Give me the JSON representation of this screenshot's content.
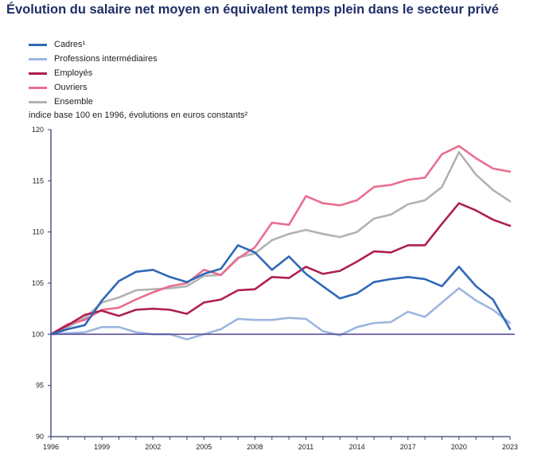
{
  "title": "Évolution du salaire net moyen en équivalent temps plein dans le secteur privé",
  "chart_data": {
    "type": "line",
    "title": "Évolution du salaire net moyen en équivalent temps plein dans le secteur privé",
    "ylabel": "indice base 100 en 1996, évolutions en euros constants²",
    "xlabel": "",
    "x": [
      1996,
      1997,
      1998,
      1999,
      2000,
      2001,
      2002,
      2003,
      2004,
      2005,
      2006,
      2007,
      2008,
      2009,
      2010,
      2011,
      2012,
      2013,
      2014,
      2015,
      2016,
      2017,
      2018,
      2019,
      2020,
      2021,
      2022,
      2023
    ],
    "xticks": [
      "1996",
      "1999",
      "2002",
      "2005",
      "2008",
      "2011",
      "2014",
      "2017",
      "2020",
      "2023"
    ],
    "yticks": [
      "90",
      "95",
      "100",
      "105",
      "110",
      "115",
      "120"
    ],
    "ylim": [
      90,
      120
    ],
    "xlim": [
      1996,
      2023
    ],
    "baseline": 100,
    "legend_position": "top-left",
    "grid": false,
    "series": [
      {
        "name": "Cadres¹",
        "color": "#2f68b8",
        "values": [
          100,
          100.5,
          100.9,
          103.3,
          105.2,
          106.1,
          106.3,
          105.6,
          105.1,
          105.9,
          106.4,
          108.7,
          108,
          106.3,
          107.6,
          105.9,
          104.7,
          103.5,
          104,
          105.1,
          105.4,
          105.6,
          105.4,
          104.7,
          106.6,
          104.7,
          103.4,
          100.5
        ]
      },
      {
        "name": "Professions intermédiaires",
        "color": "#9db6e0",
        "values": [
          100,
          100.1,
          100.2,
          100.7,
          100.7,
          100.2,
          100,
          100,
          99.5,
          100,
          100.5,
          101.5,
          101.4,
          101.4,
          101.6,
          101.5,
          100.3,
          99.9,
          100.7,
          101.1,
          101.2,
          102.2,
          101.7,
          103.1,
          104.5,
          103.3,
          102.4,
          101.1
        ]
      },
      {
        "name": "Employés",
        "color": "#ae1f4e",
        "values": [
          100,
          100.9,
          101.9,
          102.3,
          101.8,
          102.4,
          102.5,
          102.4,
          102,
          103.1,
          103.4,
          104.3,
          104.4,
          105.6,
          105.5,
          106.6,
          105.9,
          106.2,
          107.1,
          108.1,
          108,
          108.7,
          108.7,
          110.8,
          112.8,
          112.1,
          111.2,
          110.6
        ]
      },
      {
        "name": "Ouvriers",
        "color": "#e96e8f",
        "values": [
          100,
          101,
          101.4,
          102.4,
          102.6,
          103.4,
          104.1,
          104.7,
          105,
          106.3,
          105.8,
          107.4,
          108.5,
          110.9,
          110.7,
          113.5,
          112.8,
          112.6,
          113.1,
          114.4,
          114.6,
          115.1,
          115.3,
          117.6,
          118.4,
          117.2,
          116.2,
          115.9
        ]
      },
      {
        "name": "Ensemble",
        "color": "#b2b2b2",
        "values": [
          100,
          100.7,
          101.6,
          103.1,
          103.6,
          104.3,
          104.4,
          104.5,
          104.7,
          105.7,
          105.8,
          107.5,
          107.9,
          109.2,
          109.8,
          110.2,
          109.8,
          109.5,
          110,
          111.3,
          111.7,
          112.7,
          113.1,
          114.4,
          117.8,
          115.6,
          114.1,
          113
        ]
      }
    ]
  }
}
